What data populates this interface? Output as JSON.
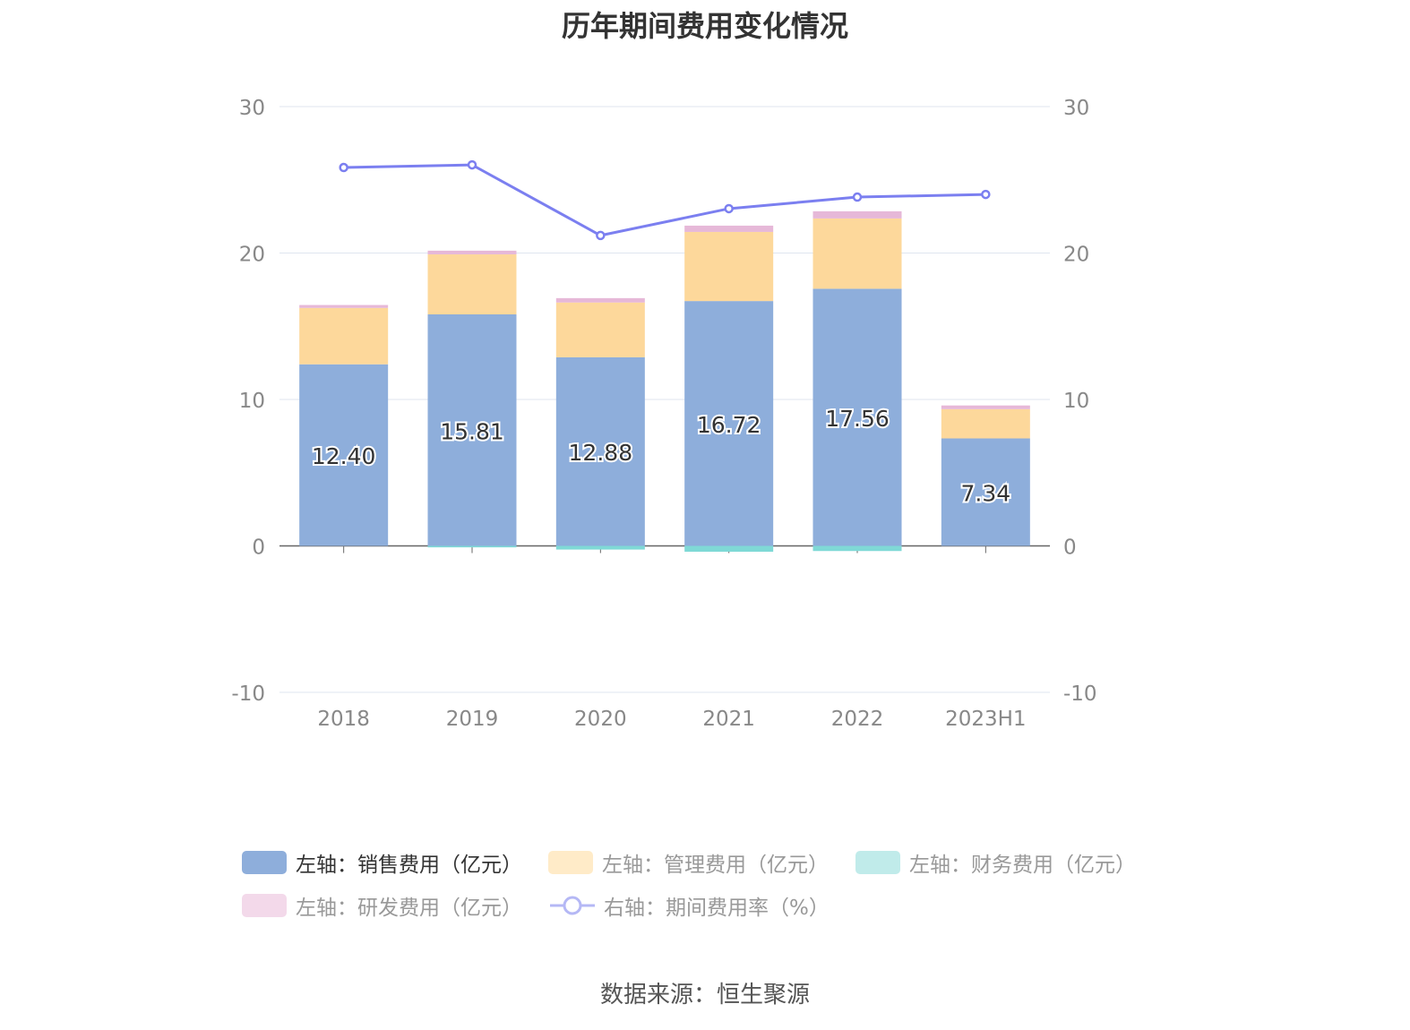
{
  "chart_data": {
    "type": "bar",
    "title": "历年期间费用变化情况",
    "categories": [
      "2018",
      "2019",
      "2020",
      "2021",
      "2022",
      "2023H1"
    ],
    "left_axis": {
      "range": [
        -10,
        30
      ],
      "ticks": [
        -10,
        0,
        10,
        20,
        30
      ]
    },
    "right_axis": {
      "range": [
        -10,
        30
      ],
      "ticks": [
        -10,
        0,
        10,
        20,
        30
      ]
    },
    "grid": true,
    "stacked": true,
    "legend_position": "bottom",
    "series": [
      {
        "name": "左轴：销售费用（亿元）",
        "type": "bar",
        "axis": "left",
        "color": "#8eaedb",
        "values": [
          12.4,
          15.81,
          12.88,
          16.72,
          17.56,
          7.34
        ],
        "labels": [
          "12.40",
          "15.81",
          "12.88",
          "16.72",
          "17.56",
          "7.34"
        ]
      },
      {
        "name": "左轴：管理费用（亿元）",
        "type": "bar",
        "axis": "left",
        "color": "#fdd89b",
        "values": [
          3.85,
          4.1,
          3.74,
          4.72,
          4.8,
          2.0
        ]
      },
      {
        "name": "左轴：财务费用（亿元）",
        "type": "bar",
        "axis": "left",
        "color": "#7fd9d6",
        "values": [
          0.0,
          -0.1,
          -0.25,
          -0.4,
          -0.35,
          0.0
        ]
      },
      {
        "name": "左轴：研发费用（亿元）",
        "type": "bar",
        "axis": "left",
        "color": "#e6b8d8",
        "values": [
          0.2,
          0.25,
          0.3,
          0.43,
          0.49,
          0.25
        ]
      },
      {
        "name": "右轴：期间费用率（%）",
        "type": "line",
        "axis": "right",
        "color": "#7b7ff0",
        "values": [
          25.84,
          26.02,
          21.2,
          23.03,
          23.82,
          24.0
        ]
      }
    ],
    "legend_colors": [
      "#8eaedb",
      "#ffebc8",
      "#c0ebea",
      "#f3d9ea",
      "#b5b8f5"
    ]
  },
  "source": "数据来源：恒生聚源"
}
